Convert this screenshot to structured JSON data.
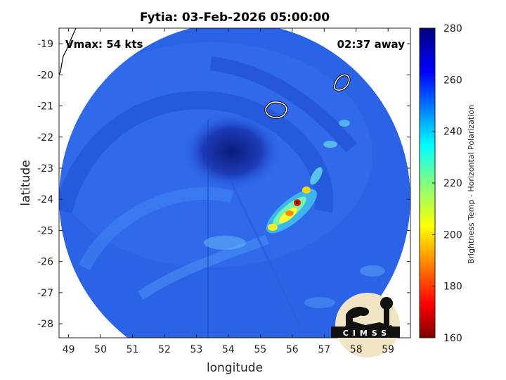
{
  "title": "Fytia: 03-Feb-2026 05:00:00",
  "annotations": {
    "vmax": "Vmax: 54 kts",
    "time_away": "02:37 away"
  },
  "axes": {
    "xlabel": "longitude",
    "ylabel": "latitude",
    "xlim": [
      48.7,
      59.7
    ],
    "ylim": [
      -28.45,
      -18.5
    ],
    "xticks": [
      "49",
      "50",
      "51",
      "52",
      "53",
      "54",
      "55",
      "56",
      "57",
      "58",
      "59"
    ],
    "yticks": [
      "-19",
      "-20",
      "-21",
      "-22",
      "-23",
      "-24",
      "-25",
      "-26",
      "-27",
      "-28"
    ]
  },
  "colorbar": {
    "label": "Brightness Temp - Horizontal Polarization",
    "range": [
      160,
      280
    ],
    "ticks": [
      "280",
      "260",
      "240",
      "220",
      "200",
      "180",
      "160"
    ],
    "colormap": "jet"
  },
  "logo": {
    "text": "CIMSS"
  },
  "colors": {
    "cold_core": "#0d1f86",
    "background_field": "#2b63e6",
    "convection_min": "#7a0000"
  }
}
